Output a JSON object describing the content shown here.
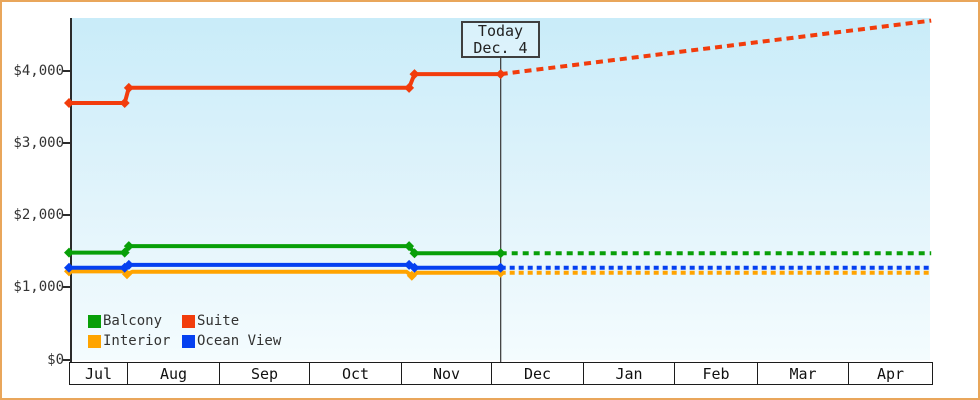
{
  "y_axis": {
    "tick_labels": [
      "$4,000",
      "$3,000",
      "$2,000",
      "$1,000",
      "$0"
    ],
    "tick_values": [
      4000,
      3000,
      2000,
      1000,
      0
    ]
  },
  "x_axis": {
    "months": [
      "Jul",
      "Aug",
      "Sep",
      "Oct",
      "Nov",
      "Dec",
      "Jan",
      "Feb",
      "Mar",
      "Apr"
    ]
  },
  "today_marker": {
    "title": "Today",
    "date": "Dec. 4"
  },
  "legend": {
    "items": [
      {
        "label": "Balcony",
        "color": "#089f08"
      },
      {
        "label": "Suite",
        "color": "#f23c0c"
      },
      {
        "label": "Interior",
        "color": "#ffa400"
      },
      {
        "label": "Ocean View",
        "color": "#0540f0"
      }
    ]
  },
  "chart_data": {
    "type": "line",
    "title": "",
    "x_categories": [
      "Jul",
      "Aug",
      "Sep",
      "Oct",
      "Nov",
      "Dec",
      "Jan",
      "Feb",
      "Mar",
      "Apr"
    ],
    "x_unit": "month_index (0 = Jul cell start, fractions = day within month)",
    "ylim": [
      0,
      4700
    ],
    "yticks": [
      0,
      1000,
      2000,
      3000,
      4000
    ],
    "grid": false,
    "legend_position": "bottom-left",
    "today": {
      "label": "Today",
      "date": "Dec. 4",
      "x_month_index": 5.105
    },
    "series": [
      {
        "name": "Interior",
        "color": "#ffa400",
        "solid_points": [
          [
            0,
            1220
          ],
          [
            0.94,
            1220
          ],
          [
            1,
            1180
          ],
          [
            1.06,
            1215
          ],
          [
            4.06,
            1215
          ],
          [
            4.12,
            1160
          ],
          [
            4.18,
            1200
          ],
          [
            5.105,
            1200
          ]
        ],
        "forecast_points": [
          [
            5.105,
            1200
          ],
          [
            9.99,
            1200
          ]
        ],
        "marker_points": [
          [
            0,
            1220
          ],
          [
            1,
            1180
          ],
          [
            4.12,
            1160
          ],
          [
            5.105,
            1200
          ]
        ]
      },
      {
        "name": "Ocean View",
        "color": "#0540f0",
        "solid_points": [
          [
            0,
            1270
          ],
          [
            0.96,
            1270
          ],
          [
            1.02,
            1310
          ],
          [
            4.09,
            1310
          ],
          [
            4.15,
            1270
          ],
          [
            5.105,
            1270
          ]
        ],
        "forecast_points": [
          [
            5.105,
            1270
          ],
          [
            9.99,
            1270
          ]
        ],
        "marker_points": [
          [
            0,
            1270
          ],
          [
            0.96,
            1270
          ],
          [
            1.02,
            1310
          ],
          [
            4.09,
            1310
          ],
          [
            4.15,
            1270
          ],
          [
            5.105,
            1270
          ]
        ]
      },
      {
        "name": "Balcony",
        "color": "#089f08",
        "solid_points": [
          [
            0,
            1480
          ],
          [
            0.96,
            1480
          ],
          [
            1.02,
            1570
          ],
          [
            4.09,
            1570
          ],
          [
            4.15,
            1470
          ],
          [
            5.105,
            1470
          ]
        ],
        "forecast_points": [
          [
            5.105,
            1470
          ],
          [
            9.99,
            1470
          ]
        ],
        "marker_points": [
          [
            0,
            1480
          ],
          [
            0.96,
            1480
          ],
          [
            1.02,
            1570
          ],
          [
            4.09,
            1570
          ],
          [
            4.15,
            1470
          ],
          [
            5.105,
            1470
          ]
        ]
      },
      {
        "name": "Suite",
        "color": "#f23c0c",
        "solid_points": [
          [
            0,
            3550
          ],
          [
            0.96,
            3550
          ],
          [
            1.02,
            3760
          ],
          [
            4.09,
            3760
          ],
          [
            4.15,
            3950
          ],
          [
            5.105,
            3950
          ]
        ],
        "forecast_points": [
          [
            5.105,
            3950
          ],
          [
            9.99,
            4690
          ]
        ],
        "marker_points": [
          [
            0,
            3550
          ],
          [
            0.96,
            3550
          ],
          [
            1.02,
            3760
          ],
          [
            4.09,
            3760
          ],
          [
            4.15,
            3950
          ],
          [
            5.105,
            3950
          ]
        ]
      }
    ]
  }
}
